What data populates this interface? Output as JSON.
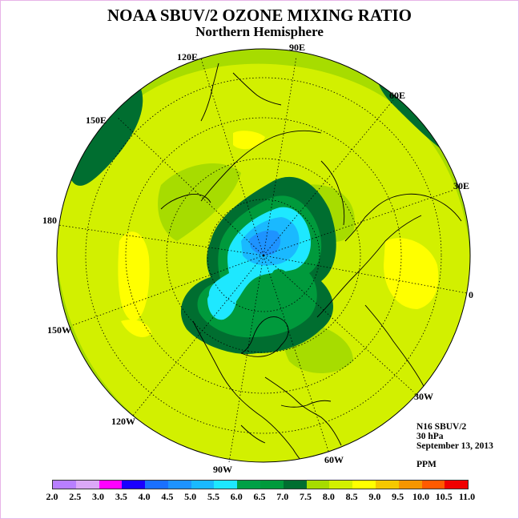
{
  "title": "NOAA SBUV/2 OZONE MIXING RATIO",
  "subtitle": "Northern Hemisphere",
  "longitude_labels": [
    "90E",
    "60E",
    "30E",
    "0",
    "30W",
    "60W",
    "90W",
    "120W",
    "150W",
    "180",
    "150E",
    "120E"
  ],
  "info": {
    "instrument": "N16 SBUV/2",
    "level": "30 hPa",
    "date": "September 13, 2013",
    "units": "PPM"
  },
  "colorbar": {
    "ticks": [
      "2.0",
      "2.5",
      "3.0",
      "3.5",
      "4.0",
      "4.5",
      "5.0",
      "5.5",
      "6.0",
      "6.5",
      "7.0",
      "7.5",
      "8.0",
      "8.5",
      "9.0",
      "9.5",
      "10.0",
      "10.5",
      "11.0"
    ],
    "colors": [
      "#b87fff",
      "#dba8f7",
      "#ff00ff",
      "#1a00ff",
      "#1a70ff",
      "#1e93ff",
      "#1ab9ff",
      "#1ee8ff",
      "#00a046",
      "#009a3c",
      "#006e30",
      "#a7dc00",
      "#d2f000",
      "#ffff00",
      "#f5c800",
      "#f59600",
      "#ff5a00",
      "#f00000",
      "#8c5a3c"
    ]
  },
  "colors": {
    "background_field": "#d2f000",
    "coast": "#000000",
    "border": "#e8b4e8"
  }
}
